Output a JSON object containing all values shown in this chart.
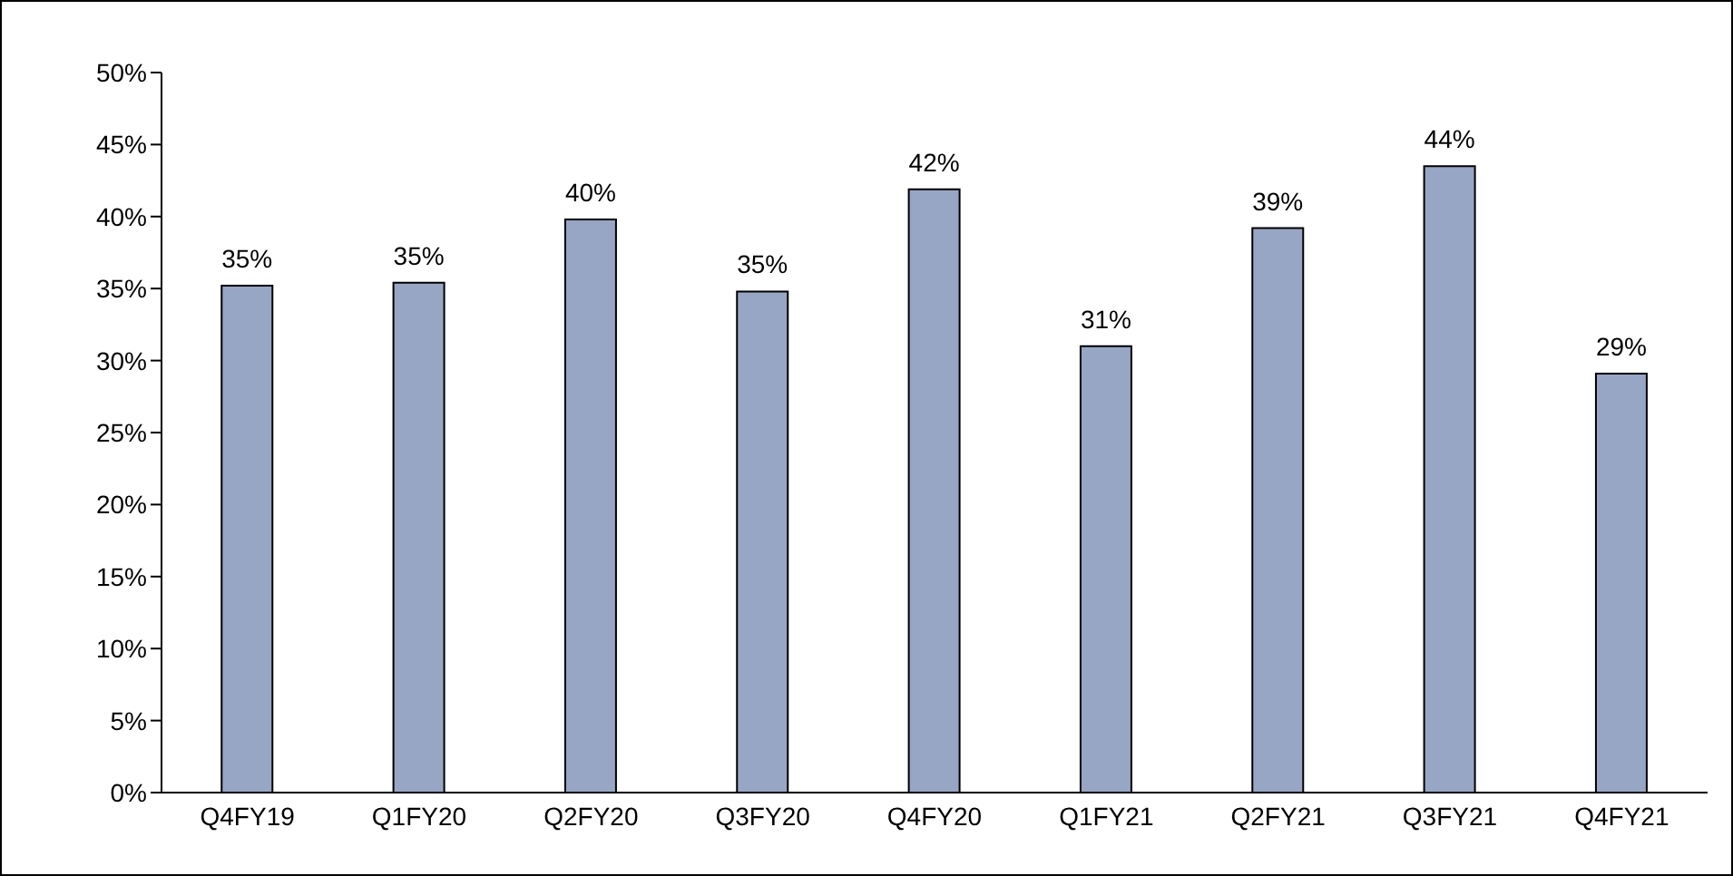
{
  "chart_data": {
    "type": "bar",
    "categories": [
      "Q4FY19",
      "Q1FY20",
      "Q2FY20",
      "Q3FY20",
      "Q4FY20",
      "Q1FY21",
      "Q2FY21",
      "Q3FY21",
      "Q4FY21"
    ],
    "values": [
      35.2,
      35.4,
      39.8,
      34.8,
      41.9,
      31.0,
      39.2,
      43.5,
      29.1
    ],
    "value_labels": [
      "35%",
      "35%",
      "40%",
      "35%",
      "42%",
      "31%",
      "39%",
      "44%",
      "29%"
    ],
    "color": "#97a6c4",
    "ylim": [
      0,
      50
    ],
    "yticks": [
      {
        "value": 0,
        "label": "0%"
      },
      {
        "value": 5,
        "label": "5%"
      },
      {
        "value": 10,
        "label": "10%"
      },
      {
        "value": 15,
        "label": "15%"
      },
      {
        "value": 20,
        "label": "20%"
      },
      {
        "value": 25,
        "label": "25%"
      },
      {
        "value": 30,
        "label": "30%"
      },
      {
        "value": 35,
        "label": "35%"
      },
      {
        "value": 40,
        "label": "40%"
      },
      {
        "value": 45,
        "label": "45%"
      },
      {
        "value": 50,
        "label": "50%"
      }
    ],
    "grid": false,
    "legend": false
  }
}
